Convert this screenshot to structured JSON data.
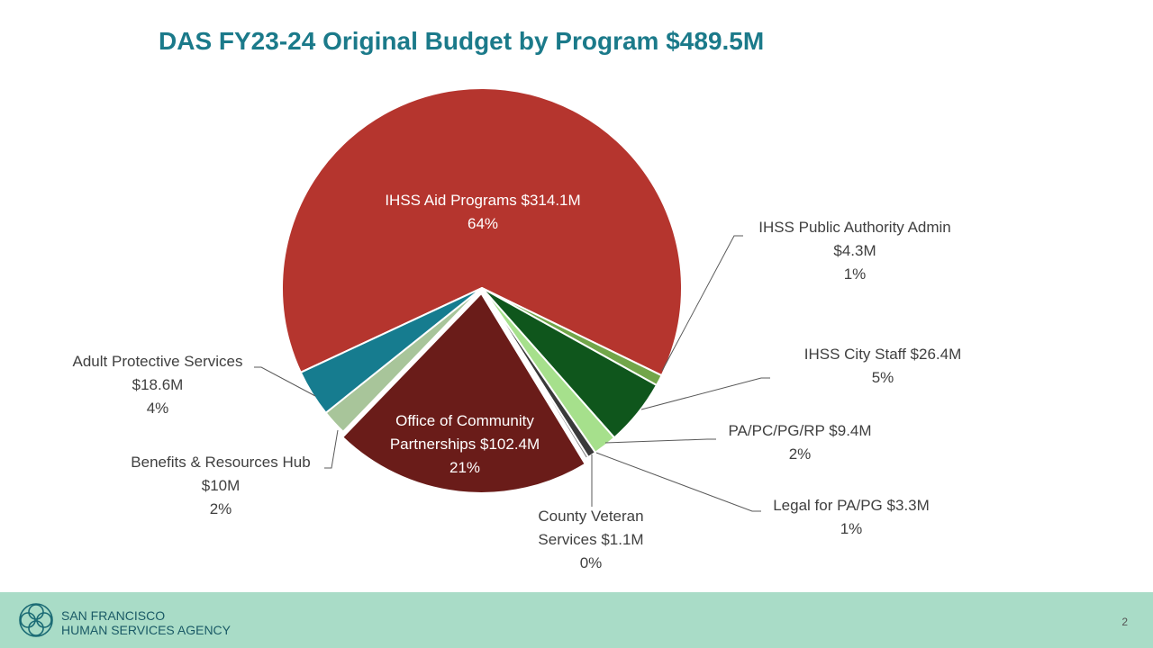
{
  "chart_data": {
    "type": "pie",
    "title": "DAS FY23-24 Original Budget by Program $489.5M",
    "categories": [
      "IHSS Aid Programs",
      "IHSS Public Authority Admin",
      "IHSS City Staff",
      "PA/PC/PG/RP",
      "Legal for PA/PG",
      "County Veteran Services",
      "Office of Community Partnerships",
      "Benefits & Resources Hub",
      "Adult Protective Services"
    ],
    "values": [
      314.1,
      4.3,
      26.4,
      9.4,
      3.3,
      1.1,
      102.4,
      10,
      18.6
    ],
    "value_labels": [
      "$314.1M",
      "$4.3M",
      "$26.4M",
      "$9.4M",
      "$3.3M",
      "$1.1M",
      "$102.4M",
      "$10M",
      "$18.6M"
    ],
    "percents": [
      64,
      1,
      5,
      2,
      1,
      0,
      21,
      2,
      4
    ],
    "percent_labels": [
      "64%",
      "1%",
      "5%",
      "2%",
      "1%",
      "0%",
      "21%",
      "2%",
      "4%"
    ],
    "colors": [
      "#b5352e",
      "#72a64a",
      "#0f561c",
      "#a6e08c",
      "#3a3a3a",
      "#808080",
      "#6a1c19",
      "#a8c59a",
      "#167c8f"
    ]
  },
  "footer": {
    "org_line1": "SAN FRANCISCO",
    "org_line2": "HUMAN SERVICES AGENCY",
    "page_number": 2
  }
}
